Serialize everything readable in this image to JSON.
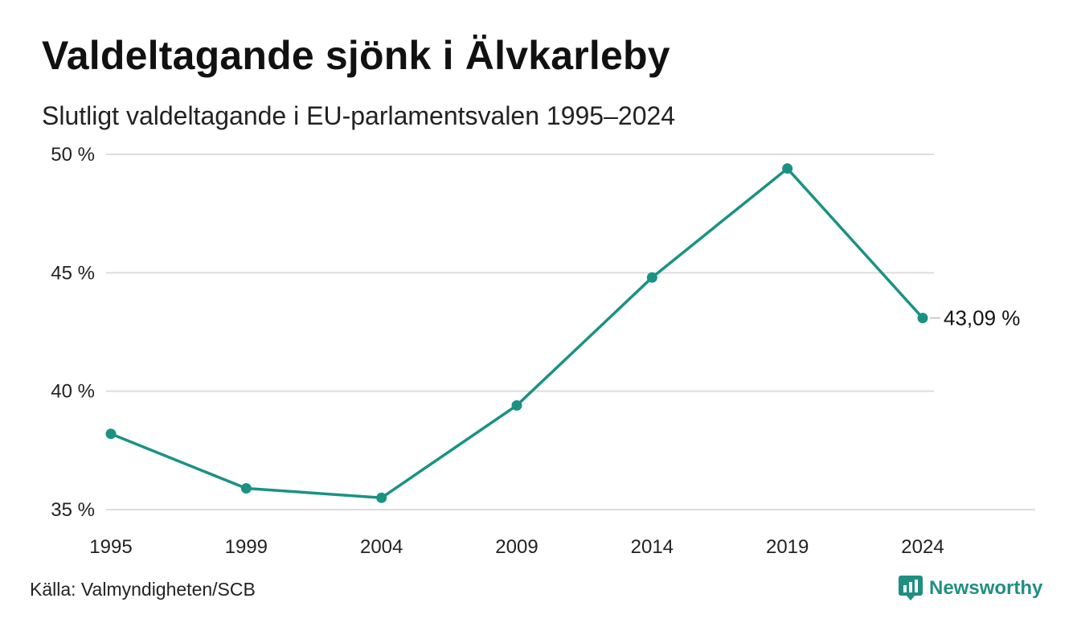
{
  "title": "Valdeltagande sjönk i Älvkarleby",
  "subtitle": "Slutligt valdeltagande i EU-parlamentsvalen 1995–2024",
  "source": "Källa: Valmyndigheten/SCB",
  "brand": {
    "name": "Newsworthy",
    "icon": "newsworthy-logo-icon"
  },
  "colors": {
    "line": "#1a9283",
    "grid": "#dddddd",
    "brand": "#1f8f82"
  },
  "chart_data": {
    "type": "line",
    "title": "Valdeltagande sjönk i Älvkarleby",
    "subtitle": "Slutligt valdeltagande i EU-parlamentsvalen 1995–2024",
    "x": [
      "1995",
      "1999",
      "2004",
      "2009",
      "2014",
      "2019",
      "2024"
    ],
    "series": [
      {
        "values": [
          38.2,
          35.9,
          35.5,
          39.4,
          44.8,
          49.4,
          43.09
        ]
      }
    ],
    "ylim": [
      35,
      50
    ],
    "yticks": [
      35,
      40,
      45,
      50
    ],
    "ytick_labels": [
      "35 %",
      "40 %",
      "45 %",
      "50 %"
    ],
    "end_label": "43,09 %",
    "grid": true,
    "legend": "none"
  }
}
